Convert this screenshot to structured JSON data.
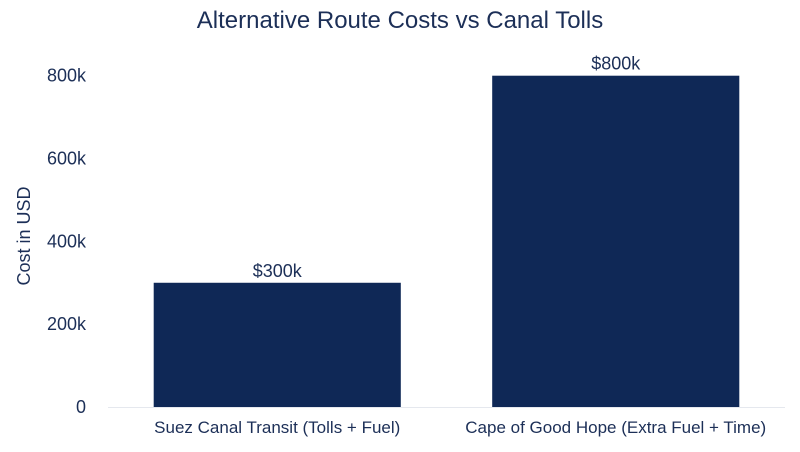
{
  "chart_data": {
    "type": "bar",
    "title": "Alternative Route Costs vs Canal Tolls",
    "xlabel": "",
    "ylabel": "Cost in USD",
    "categories": [
      "Suez Canal Transit (Tolls + Fuel)",
      "Cape of Good Hope (Extra Fuel + Time)"
    ],
    "values": [
      300000,
      800000
    ],
    "data_labels": [
      "$300k",
      "$800k"
    ],
    "ylim": [
      0,
      850000
    ],
    "yticks": [
      0,
      200000,
      400000,
      600000,
      800000
    ],
    "ytick_labels": [
      "0",
      "200k",
      "400k",
      "600k",
      "800k"
    ],
    "grid": false,
    "legend": "none",
    "colors": {
      "bar": "#0f2856",
      "text": "#1c2f57",
      "axis": "#e5e8ee",
      "background": "#ffffff"
    }
  }
}
